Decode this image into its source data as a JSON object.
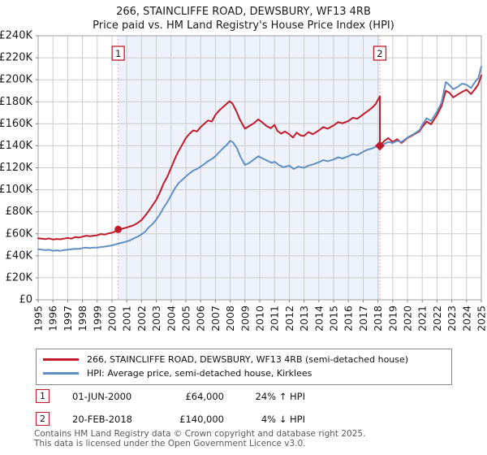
{
  "title": "266, STAINCLIFFE ROAD, DEWSBURY, WF13 4RB",
  "subtitle": "Price paid vs. HM Land Registry's House Price Index (HPI)",
  "colors": {
    "property_line": "#c11b2b",
    "hpi_line": "#6290c3",
    "sale_dashed_line": "#f09090",
    "shade_region": "#eef2fb",
    "gridline": "#cccccc",
    "plot_border": "#a0a0a0"
  },
  "chart_data": {
    "type": "line",
    "xlim": [
      1995,
      2025
    ],
    "ylim_k": [
      0,
      240
    ],
    "grid": true,
    "x_ticks": [
      1995,
      1996,
      1997,
      1998,
      1999,
      2000,
      2001,
      2002,
      2003,
      2004,
      2005,
      2006,
      2007,
      2008,
      2009,
      2010,
      2011,
      2012,
      2013,
      2014,
      2015,
      2016,
      2017,
      2018,
      2019,
      2020,
      2021,
      2022,
      2023,
      2024,
      2025
    ],
    "y_ticks": [
      {
        "v": 0,
        "label": "£0"
      },
      {
        "v": 20,
        "label": "£20K"
      },
      {
        "v": 40,
        "label": "£40K"
      },
      {
        "v": 60,
        "label": "£60K"
      },
      {
        "v": 80,
        "label": "£80K"
      },
      {
        "v": 100,
        "label": "£100K"
      },
      {
        "v": 120,
        "label": "£120K"
      },
      {
        "v": 140,
        "label": "£140K"
      },
      {
        "v": 160,
        "label": "£160K"
      },
      {
        "v": 180,
        "label": "£180K"
      },
      {
        "v": 200,
        "label": "£200K"
      },
      {
        "v": 220,
        "label": "£220K"
      },
      {
        "v": 240,
        "label": "£240K"
      }
    ],
    "shaded_region": {
      "from_year": 2000.42,
      "to_year": 2018.13
    },
    "sale_markers": [
      {
        "label": "1",
        "year": 2000.42,
        "value_k": 64,
        "shape": "circle"
      },
      {
        "label": "2",
        "year": 2018.13,
        "value_k": 140,
        "shape": "diamond"
      }
    ],
    "series": [
      {
        "name": "266, STAINCLIFFE ROAD, DEWSBURY, WF13 4RB (semi-detached house)",
        "color_key": "property_line",
        "points": [
          [
            1995.0,
            56
          ],
          [
            1995.25,
            55.5
          ],
          [
            1995.5,
            55.2
          ],
          [
            1995.75,
            55.8
          ],
          [
            1996.0,
            54.8
          ],
          [
            1996.25,
            55.3
          ],
          [
            1996.5,
            55.0
          ],
          [
            1996.75,
            55.6
          ],
          [
            1997.0,
            56.2
          ],
          [
            1997.25,
            55.6
          ],
          [
            1997.5,
            57.0
          ],
          [
            1997.75,
            56.6
          ],
          [
            1998.0,
            57.4
          ],
          [
            1998.25,
            58.3
          ],
          [
            1998.5,
            57.8
          ],
          [
            1998.75,
            58.3
          ],
          [
            1999.0,
            58.6
          ],
          [
            1999.25,
            59.8
          ],
          [
            1999.5,
            59.3
          ],
          [
            1999.75,
            60.3
          ],
          [
            2000.0,
            61.0
          ],
          [
            2000.2,
            62.0
          ],
          [
            2000.42,
            64.0
          ],
          [
            2000.7,
            64.6
          ],
          [
            2001.0,
            65.8
          ],
          [
            2001.25,
            66.8
          ],
          [
            2001.5,
            68.0
          ],
          [
            2001.75,
            70.0
          ],
          [
            2002.0,
            72.5
          ],
          [
            2002.25,
            76.5
          ],
          [
            2002.5,
            81.0
          ],
          [
            2002.75,
            86.0
          ],
          [
            2003.0,
            91.0
          ],
          [
            2003.25,
            98.0
          ],
          [
            2003.5,
            106.0
          ],
          [
            2003.75,
            112.0
          ],
          [
            2004.0,
            120.0
          ],
          [
            2004.25,
            128.0
          ],
          [
            2004.5,
            135.0
          ],
          [
            2004.75,
            141.0
          ],
          [
            2005.0,
            147.0
          ],
          [
            2005.25,
            151.0
          ],
          [
            2005.5,
            154.0
          ],
          [
            2005.75,
            153.0
          ],
          [
            2006.0,
            157.0
          ],
          [
            2006.25,
            160.0
          ],
          [
            2006.5,
            163.0
          ],
          [
            2006.75,
            162.0
          ],
          [
            2007.0,
            168.0
          ],
          [
            2007.25,
            172.0
          ],
          [
            2007.5,
            175.0
          ],
          [
            2007.75,
            178.0
          ],
          [
            2007.95,
            180.5
          ],
          [
            2008.15,
            178.5
          ],
          [
            2008.4,
            172.0
          ],
          [
            2008.65,
            164.0
          ],
          [
            2009.0,
            155.5
          ],
          [
            2009.3,
            158.0
          ],
          [
            2009.6,
            160.5
          ],
          [
            2009.9,
            164.0
          ],
          [
            2010.15,
            161.5
          ],
          [
            2010.45,
            158.0
          ],
          [
            2010.75,
            156.0
          ],
          [
            2011.0,
            159.0
          ],
          [
            2011.2,
            153.5
          ],
          [
            2011.45,
            151.0
          ],
          [
            2011.7,
            153.0
          ],
          [
            2012.0,
            150.5
          ],
          [
            2012.25,
            147.5
          ],
          [
            2012.5,
            152.0
          ],
          [
            2012.75,
            149.5
          ],
          [
            2013.0,
            149.0
          ],
          [
            2013.3,
            152.5
          ],
          [
            2013.6,
            150.5
          ],
          [
            2014.0,
            154.0
          ],
          [
            2014.3,
            157.0
          ],
          [
            2014.6,
            155.5
          ],
          [
            2015.0,
            158.5
          ],
          [
            2015.3,
            161.5
          ],
          [
            2015.6,
            160.5
          ],
          [
            2016.0,
            162.5
          ],
          [
            2016.3,
            165.5
          ],
          [
            2016.6,
            164.5
          ],
          [
            2017.0,
            168.5
          ],
          [
            2017.3,
            171.5
          ],
          [
            2017.6,
            174.5
          ],
          [
            2017.85,
            178.0
          ],
          [
            2018.13,
            185.0
          ],
          [
            2018.13,
            140.0
          ],
          [
            2018.4,
            144.0
          ],
          [
            2018.7,
            147.0
          ],
          [
            2019.0,
            143.5
          ],
          [
            2019.3,
            146.0
          ],
          [
            2019.6,
            142.5
          ],
          [
            2020.0,
            147.0
          ],
          [
            2020.4,
            150.0
          ],
          [
            2020.8,
            153.0
          ],
          [
            2021.0,
            157.0
          ],
          [
            2021.3,
            162.0
          ],
          [
            2021.6,
            159.5
          ],
          [
            2022.0,
            168.0
          ],
          [
            2022.3,
            176.0
          ],
          [
            2022.6,
            190.0
          ],
          [
            2022.85,
            188.0
          ],
          [
            2023.1,
            184.0
          ],
          [
            2023.4,
            186.5
          ],
          [
            2023.7,
            189.0
          ],
          [
            2024.0,
            191.0
          ],
          [
            2024.3,
            187.0
          ],
          [
            2024.6,
            192.0
          ],
          [
            2024.8,
            196.0
          ],
          [
            2025.0,
            204.0
          ]
        ]
      },
      {
        "name": "HPI: Average price, semi-detached house, Kirklees",
        "color_key": "hpi_line",
        "points": [
          [
            1995.0,
            46.0
          ],
          [
            1995.25,
            45.6
          ],
          [
            1995.5,
            45.2
          ],
          [
            1995.75,
            45.5
          ],
          [
            1996.0,
            44.6
          ],
          [
            1996.25,
            45.0
          ],
          [
            1996.5,
            44.5
          ],
          [
            1996.75,
            45.2
          ],
          [
            1997.0,
            45.6
          ],
          [
            1997.25,
            46.0
          ],
          [
            1997.5,
            46.4
          ],
          [
            1997.75,
            46.2
          ],
          [
            1998.0,
            47.0
          ],
          [
            1998.25,
            47.4
          ],
          [
            1998.5,
            47.0
          ],
          [
            1998.75,
            47.5
          ],
          [
            1999.0,
            47.4
          ],
          [
            1999.25,
            48.0
          ],
          [
            1999.5,
            48.4
          ],
          [
            1999.75,
            48.8
          ],
          [
            2000.0,
            49.5
          ],
          [
            2000.42,
            51.0
          ],
          [
            2000.7,
            52.0
          ],
          [
            2001.0,
            53.0
          ],
          [
            2001.25,
            54.3
          ],
          [
            2001.5,
            56.0
          ],
          [
            2001.75,
            57.5
          ],
          [
            2002.0,
            59.5
          ],
          [
            2002.25,
            62.0
          ],
          [
            2002.5,
            66.0
          ],
          [
            2002.75,
            69.0
          ],
          [
            2003.0,
            73.0
          ],
          [
            2003.25,
            78.0
          ],
          [
            2003.5,
            84.0
          ],
          [
            2003.75,
            89.0
          ],
          [
            2004.0,
            95.0
          ],
          [
            2004.25,
            101.0
          ],
          [
            2004.5,
            106.0
          ],
          [
            2004.75,
            109.0
          ],
          [
            2005.0,
            112.0
          ],
          [
            2005.25,
            115.0
          ],
          [
            2005.5,
            117.5
          ],
          [
            2005.75,
            119.0
          ],
          [
            2006.0,
            121.0
          ],
          [
            2006.25,
            123.5
          ],
          [
            2006.5,
            126.0
          ],
          [
            2006.75,
            128.0
          ],
          [
            2007.0,
            130.5
          ],
          [
            2007.25,
            134.0
          ],
          [
            2007.5,
            137.5
          ],
          [
            2007.75,
            140.5
          ],
          [
            2008.0,
            144.5
          ],
          [
            2008.2,
            143.0
          ],
          [
            2008.45,
            138.0
          ],
          [
            2008.7,
            130.0
          ],
          [
            2009.0,
            122.5
          ],
          [
            2009.3,
            124.5
          ],
          [
            2009.6,
            127.5
          ],
          [
            2009.9,
            130.5
          ],
          [
            2010.2,
            128.5
          ],
          [
            2010.5,
            126.5
          ],
          [
            2010.8,
            124.5
          ],
          [
            2011.0,
            125.5
          ],
          [
            2011.3,
            122.5
          ],
          [
            2011.6,
            120.5
          ],
          [
            2012.0,
            122.0
          ],
          [
            2012.3,
            119.0
          ],
          [
            2012.6,
            121.0
          ],
          [
            2013.0,
            120.0
          ],
          [
            2013.3,
            122.0
          ],
          [
            2013.6,
            123.0
          ],
          [
            2014.0,
            125.0
          ],
          [
            2014.3,
            127.0
          ],
          [
            2014.6,
            126.0
          ],
          [
            2015.0,
            127.5
          ],
          [
            2015.3,
            129.5
          ],
          [
            2015.6,
            128.5
          ],
          [
            2016.0,
            130.5
          ],
          [
            2016.3,
            132.5
          ],
          [
            2016.6,
            131.5
          ],
          [
            2017.0,
            134.5
          ],
          [
            2017.3,
            136.5
          ],
          [
            2017.6,
            137.5
          ],
          [
            2018.0,
            140.0
          ],
          [
            2018.4,
            141.5
          ],
          [
            2018.7,
            143.5
          ],
          [
            2019.0,
            142.5
          ],
          [
            2019.3,
            144.5
          ],
          [
            2019.6,
            143.5
          ],
          [
            2020.0,
            147.5
          ],
          [
            2020.4,
            150.5
          ],
          [
            2020.8,
            154.0
          ],
          [
            2021.0,
            159.0
          ],
          [
            2021.3,
            165.0
          ],
          [
            2021.6,
            162.5
          ],
          [
            2022.0,
            171.0
          ],
          [
            2022.3,
            179.0
          ],
          [
            2022.6,
            198.0
          ],
          [
            2022.85,
            195.0
          ],
          [
            2023.1,
            191.5
          ],
          [
            2023.4,
            193.5
          ],
          [
            2023.7,
            196.5
          ],
          [
            2024.0,
            195.5
          ],
          [
            2024.3,
            192.5
          ],
          [
            2024.6,
            198.5
          ],
          [
            2024.8,
            201.5
          ],
          [
            2025.0,
            212.0
          ]
        ]
      }
    ]
  },
  "legend": {
    "items": [
      {
        "label": "266, STAINCLIFFE ROAD, DEWSBURY, WF13 4RB (semi-detached house)",
        "color_key": "property_line"
      },
      {
        "label": "HPI: Average price, semi-detached house, Kirklees",
        "color_key": "hpi_line"
      }
    ]
  },
  "annotations": [
    {
      "num": "1",
      "date": "01-JUN-2000",
      "price": "£64,000",
      "hpi_delta": "24% ↑ HPI"
    },
    {
      "num": "2",
      "date": "20-FEB-2018",
      "price": "£140,000",
      "hpi_delta": "4% ↓ HPI"
    }
  ],
  "footer": {
    "line1": "Contains HM Land Registry data © Crown copyright and database right 2025.",
    "line2": "This data is licensed under the Open Government Licence v3.0."
  }
}
